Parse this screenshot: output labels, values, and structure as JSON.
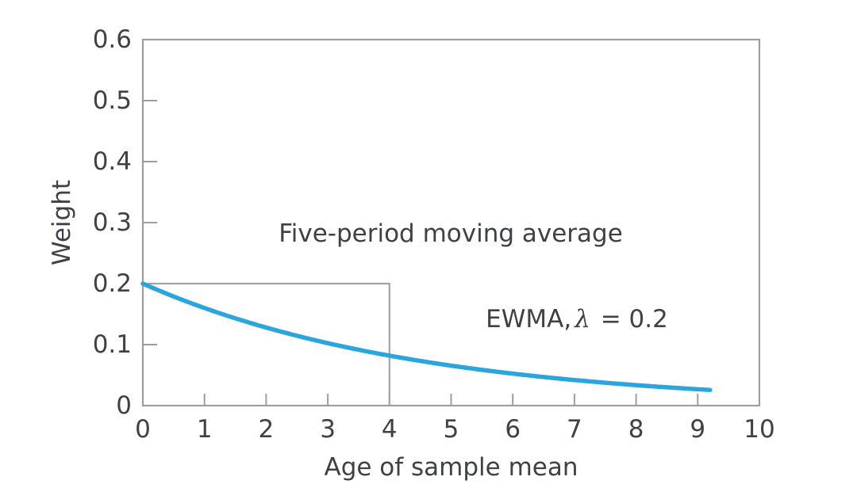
{
  "chart_data": {
    "type": "line",
    "title": "",
    "xlabel": "Age of sample mean",
    "ylabel": "Weight",
    "xlim": [
      0,
      10
    ],
    "ylim": [
      0,
      0.6
    ],
    "xticks": [
      "0",
      "1",
      "2",
      "3",
      "4",
      "5",
      "6",
      "7",
      "8",
      "9",
      "10"
    ],
    "yticks": [
      "0",
      "0.1",
      "0.2",
      "0.3",
      "0.4",
      "0.5",
      "0.6"
    ],
    "grid": false,
    "legend_position": "none",
    "series": [
      {
        "name": "Five-period moving average",
        "type": "step-rectangle",
        "color": "#a2a4a7",
        "x_range": [
          0,
          4
        ],
        "x": [
          0,
          1,
          2,
          3,
          4
        ],
        "values": [
          0.2,
          0.2,
          0.2,
          0.2,
          0.2
        ],
        "annotation": "Five-period moving average"
      },
      {
        "name": "EWMA, λ = 0.2",
        "type": "curve",
        "color": "#2aa5de",
        "lambda": 0.2,
        "x_start": 0,
        "x_end": 9.2,
        "x": [
          0,
          1,
          2,
          3,
          4,
          5,
          6,
          7,
          8,
          9
        ],
        "values": [
          0.2,
          0.16,
          0.128,
          0.1024,
          0.0819,
          0.0655,
          0.0524,
          0.0419,
          0.0336,
          0.0268
        ],
        "label_parts": {
          "prefix": "EWMA,",
          "lambda": "λ",
          "suffix": " = 0.2"
        }
      }
    ]
  },
  "colors": {
    "axis": "#9b9ea1",
    "rectangle": "#a2a4a7",
    "curve": "#2aa5de",
    "text": "#3f4245",
    "background": "#ffffff"
  }
}
